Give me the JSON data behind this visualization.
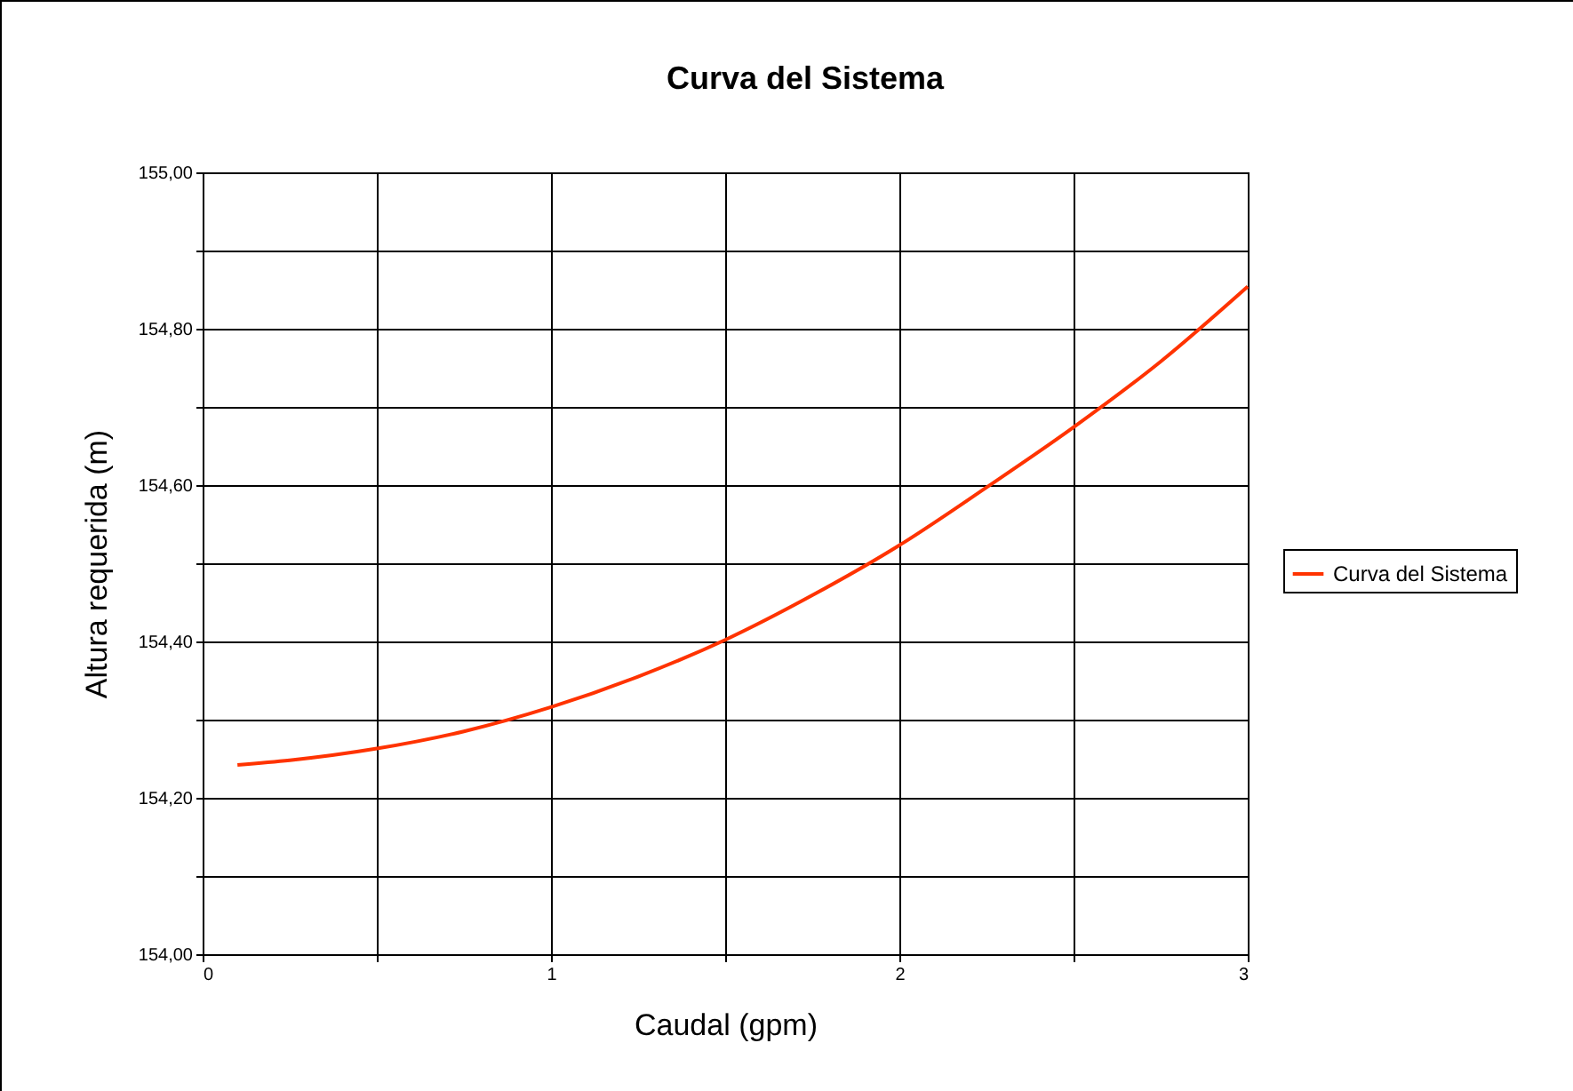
{
  "chart_data": {
    "type": "line",
    "title": "Curva del Sistema",
    "xlabel": "Caudal (gpm)",
    "ylabel": "Altura requerida (m)",
    "x": [
      0.1,
      0.25,
      0.5,
      0.75,
      1,
      1.25,
      1.5,
      1.75,
      2,
      2.25,
      2.5,
      2.75,
      3
    ],
    "series": [
      {
        "name": "Curva del Sistema",
        "color": "#ff3300",
        "values": [
          154.242,
          154.248,
          154.263,
          154.285,
          154.316,
          154.355,
          154.402,
          154.459,
          154.523,
          154.597,
          154.674,
          154.758,
          154.854
        ]
      }
    ],
    "xlim": [
      0,
      3
    ],
    "xticks": [
      0,
      {
        "value": 0.5,
        "label": null
      },
      1,
      {
        "value": 1.5,
        "label": null
      },
      2,
      {
        "value": 2.5,
        "label": null
      },
      3
    ],
    "ylim": [
      154,
      155
    ],
    "yticks": [
      {
        "value": 154,
        "label": "154,00"
      },
      {
        "value": 154.1,
        "label": null
      },
      {
        "value": 154.2,
        "label": "154,20"
      },
      {
        "value": 154.3,
        "label": null
      },
      {
        "value": 154.4,
        "label": "154,40"
      },
      {
        "value": 154.5,
        "label": null
      },
      {
        "value": 154.6,
        "label": "154,60"
      },
      {
        "value": 154.7,
        "label": null
      },
      {
        "value": 154.8,
        "label": "154,80"
      },
      {
        "value": 154.9,
        "label": null
      },
      {
        "value": 155,
        "label": "155,00"
      }
    ],
    "grid": true,
    "legend": "right",
    "marker": "none",
    "line_style": "solid"
  }
}
